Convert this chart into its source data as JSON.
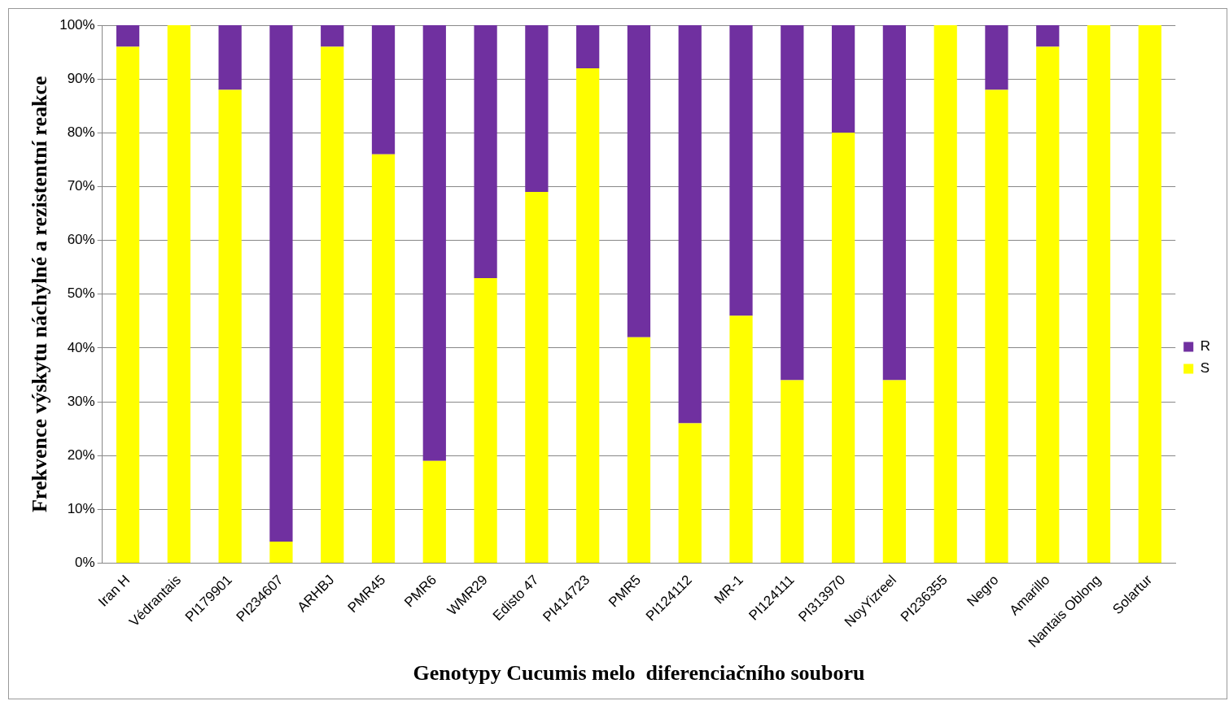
{
  "chart_data": {
    "type": "bar",
    "stacked": true,
    "xlabel": "Genotypy Cucumis melo  diferenciačního souboru",
    "ylabel": "Frekvence výskytu náchylné a rezistentní reakce",
    "categories": [
      "Iran H",
      "Védrantais",
      "PI179901",
      "PI234607",
      "ARHBJ",
      "PMR45",
      "PMR6",
      "WMR29",
      "Edisto 47",
      "PI414723",
      "PMR5",
      "PI124112",
      "MR-1",
      "PI124111",
      "PI313970",
      "NoyYizreel",
      "PI236355",
      "Negro",
      "Amarillo",
      "Nantais Oblong",
      "Solartur"
    ],
    "series": [
      {
        "name": "S",
        "color": "#ffff00",
        "values": [
          96,
          100,
          88,
          4,
          96,
          76,
          19,
          53,
          69,
          92,
          42,
          26,
          46,
          34,
          80,
          34,
          100,
          88,
          96,
          100,
          100
        ]
      },
      {
        "name": "R",
        "color": "#7030a0",
        "values": [
          4,
          0,
          12,
          96,
          4,
          24,
          81,
          47,
          31,
          8,
          58,
          74,
          54,
          66,
          20,
          66,
          0,
          12,
          4,
          0,
          0
        ]
      }
    ],
    "ylim": [
      0,
      100
    ],
    "yticks": [
      {
        "value": 0,
        "label": "0%"
      },
      {
        "value": 10,
        "label": "10%"
      },
      {
        "value": 20,
        "label": "20%"
      },
      {
        "value": 30,
        "label": "30%"
      },
      {
        "value": 40,
        "label": "40%"
      },
      {
        "value": 50,
        "label": "50%"
      },
      {
        "value": 60,
        "label": "60%"
      },
      {
        "value": 70,
        "label": "70%"
      },
      {
        "value": 80,
        "label": "80%"
      },
      {
        "value": 90,
        "label": "90%"
      },
      {
        "value": 100,
        "label": "100%"
      }
    ],
    "grid": "y",
    "legend": "right"
  }
}
